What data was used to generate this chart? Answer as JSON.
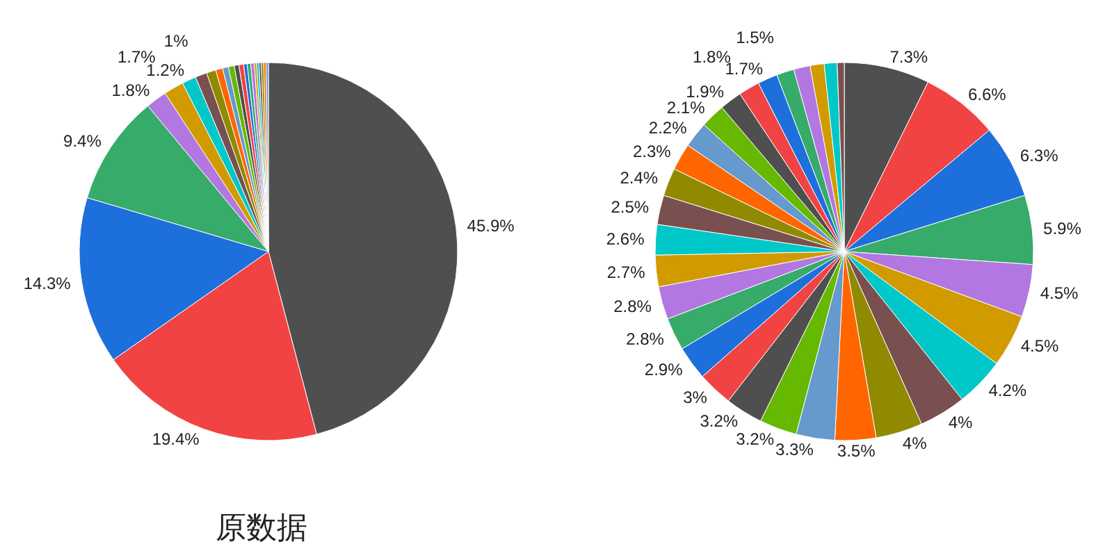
{
  "chart_data": [
    {
      "type": "pie",
      "title": "原数据",
      "legend": false,
      "categories": [
        null,
        null,
        null,
        null,
        null,
        null,
        null,
        null,
        null,
        null,
        null,
        null,
        null,
        null,
        null,
        null,
        null,
        null,
        null,
        null,
        null,
        null,
        null
      ],
      "values": [
        45.9,
        19.4,
        14.3,
        9.4,
        1.8,
        1.7,
        1.2,
        1,
        0.8,
        0.6,
        0.5,
        0.5,
        0.4,
        0.4,
        0.3,
        0.3,
        0.3,
        0.2,
        0.2,
        0.2,
        0.2,
        0.2,
        0.2
      ],
      "value_labels": [
        "45.9%",
        "19.4%",
        "14.3%",
        "9.4%",
        "1.8%",
        "1.7%",
        "1.2%",
        "1%",
        null,
        null,
        null,
        null,
        null,
        null,
        null,
        null,
        null,
        null,
        null,
        null,
        null,
        null,
        null
      ],
      "colors": [
        "#4f4f4f",
        "#f14343",
        "#1d6fdc",
        "#36ab6a",
        "#b277e0",
        "#d19b00",
        "#00c8c8",
        "#7a4f4f",
        "#8f8a00",
        "#ff6600",
        "#6699cc",
        "#66b800",
        "#4f4f4f",
        "#f14343",
        "#1d6fdc",
        "#36ab6a",
        "#b277e0",
        "#d19b00",
        "#00c8c8",
        "#7a4f4f",
        "#8f8a00",
        "#ff6600",
        "#6699cc"
      ]
    },
    {
      "type": "pie",
      "legend": false,
      "categories": [
        null,
        null,
        null,
        null,
        null,
        null,
        null,
        null,
        null,
        null,
        null,
        null,
        null,
        null,
        null,
        null,
        null,
        null,
        null,
        null,
        null,
        null,
        null,
        null,
        null,
        null,
        null,
        null,
        null,
        null,
        null,
        null
      ],
      "values": [
        7.3,
        6.6,
        6.3,
        5.9,
        4.5,
        4.5,
        4.2,
        4,
        4,
        3.5,
        3.3,
        3.2,
        3.2,
        3,
        2.9,
        2.8,
        2.8,
        2.7,
        2.6,
        2.5,
        2.4,
        2.3,
        2.2,
        2.1,
        1.9,
        1.8,
        1.7,
        1.5,
        1.4,
        1.2,
        1.1,
        0.6
      ],
      "value_labels": [
        "7.3%",
        "6.6%",
        "6.3%",
        "5.9%",
        "4.5%",
        "4.5%",
        "4.2%",
        "4%",
        "4%",
        "3.5%",
        "3.3%",
        "3.2%",
        "3.2%",
        "3%",
        "2.9%",
        "2.8%",
        "2.8%",
        "2.7%",
        "2.6%",
        "2.5%",
        "2.4%",
        "2.3%",
        "2.2%",
        "2.1%",
        "1.9%",
        "1.8%",
        "1.7%",
        "1.5%",
        null,
        null,
        null,
        null
      ],
      "colors": [
        "#4f4f4f",
        "#f14343",
        "#1d6fdc",
        "#36ab6a",
        "#b277e0",
        "#d19b00",
        "#00c8c8",
        "#7a4f4f",
        "#8f8a00",
        "#ff6600",
        "#6699cc",
        "#66b800",
        "#4f4f4f",
        "#f14343",
        "#1d6fdc",
        "#36ab6a",
        "#b277e0",
        "#d19b00",
        "#00c8c8",
        "#7a4f4f",
        "#8f8a00",
        "#ff6600",
        "#6699cc",
        "#66b800",
        "#4f4f4f",
        "#f14343",
        "#1d6fdc",
        "#36ab6a",
        "#b277e0",
        "#d19b00",
        "#00c8c8",
        "#7a4f4f"
      ]
    }
  ]
}
